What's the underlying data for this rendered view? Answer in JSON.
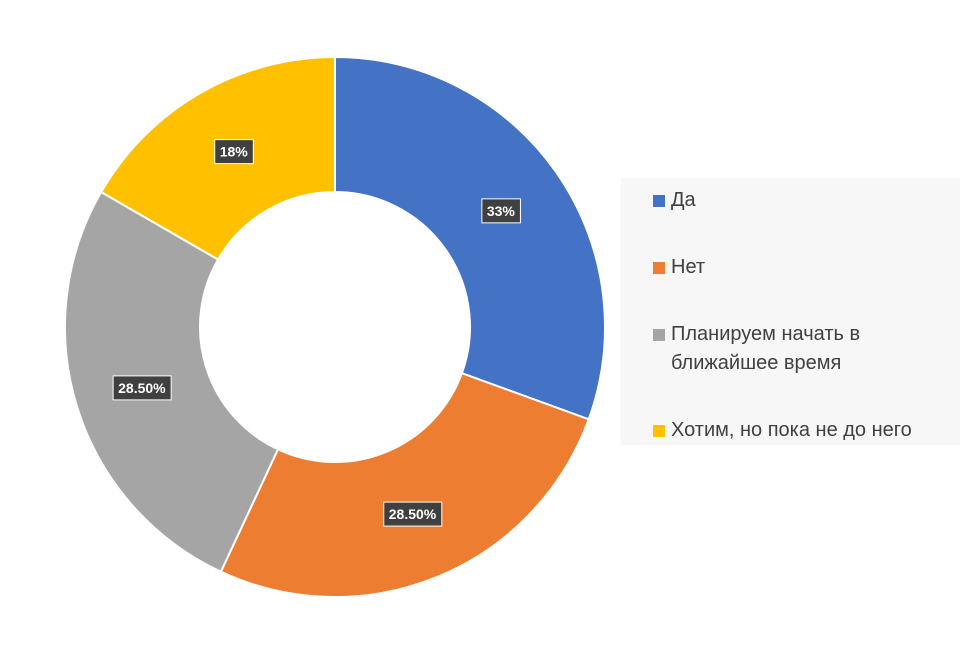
{
  "chart_data": {
    "type": "donut",
    "categories": [
      "Да",
      "Нет",
      "Планируем начать в ближайшее время",
      "Хотим, но пока не до него"
    ],
    "values": [
      33,
      28.5,
      28.5,
      18
    ],
    "value_labels": [
      "33%",
      "28.50%",
      "28.50%",
      "18%"
    ],
    "colors": [
      "#4472c4",
      "#ed7d31",
      "#a5a5a5",
      "#ffc000"
    ],
    "legend": "right"
  }
}
